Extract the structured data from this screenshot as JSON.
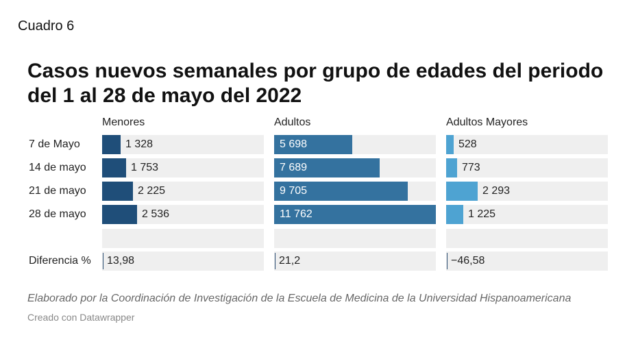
{
  "header_label": "Cuadro 6",
  "chart_data": {
    "type": "bar",
    "title": "Casos nuevos semanales por grupo de edades del periodo del 1 al 28 de mayo del 2022",
    "categories": [
      "7 de Mayo",
      "14 de mayo",
      "21 de mayo",
      "28 de mayo"
    ],
    "series": [
      {
        "name": "Menores",
        "values": [
          1328,
          1753,
          2225,
          2536
        ],
        "labels": [
          "1 328",
          "1 753",
          "2 225",
          "2 536"
        ],
        "color": "#1f4e79"
      },
      {
        "name": "Adultos",
        "values": [
          5698,
          7689,
          9705,
          11762
        ],
        "labels": [
          "5 698",
          "7 689",
          "9 705",
          "11 762"
        ],
        "color": "#34729f"
      },
      {
        "name": "Adultos Mayores",
        "values": [
          528,
          773,
          2293,
          1225
        ],
        "labels": [
          "528",
          "773",
          "2 293",
          "1 225"
        ],
        "color": "#4ea3d2"
      }
    ],
    "difference": {
      "label": "Diferencia %",
      "values": [
        13.98,
        21.2,
        -46.58
      ],
      "labels": [
        "13,98",
        "21,2",
        "−46,58"
      ]
    },
    "xlim": [
      0,
      11762
    ]
  },
  "footer": {
    "source": "Elaborado por la Coordinación de Investigación de la Escuela de Medicina de la Universidad Hispanoamericana",
    "credit": "Creado con Datawrapper"
  }
}
